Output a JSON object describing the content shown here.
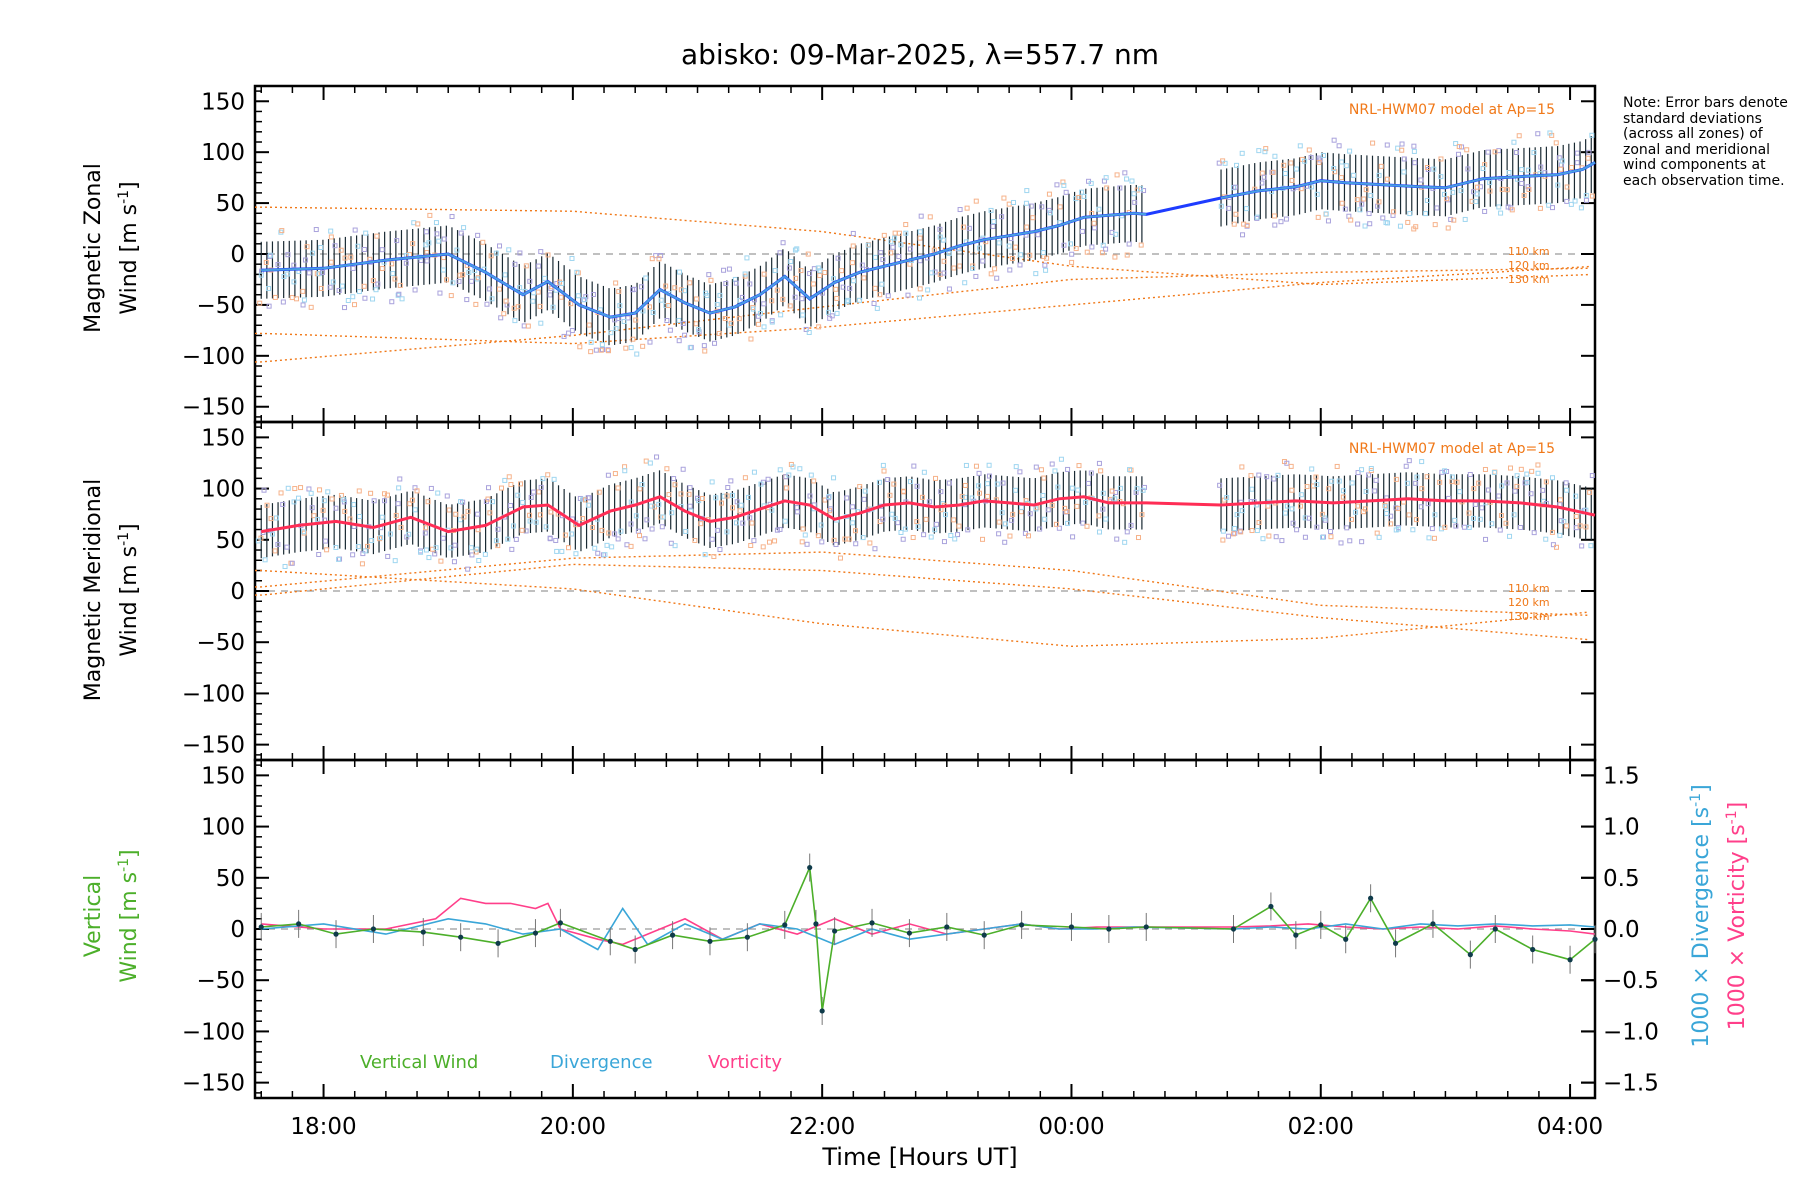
{
  "title": "abisko: 09-Mar-2025, λ=557.7 nm",
  "note": "Note: Error bars denote standard deviations (across all zones) of zonal and meridional wind components at each observation time.",
  "colors": {
    "zonal_mean": "#1e3cff",
    "zonal_light": "#4aa0e0",
    "meridional_mean": "#ff2d55",
    "vertical": "#4caf2a",
    "divergence": "#3aa6d8",
    "vorticity": "#ff3f8a",
    "model": "#f07818",
    "zone_points": "#a9a2dc",
    "error_bar": "#1a2a33"
  },
  "chart_data": [
    {
      "type": "line",
      "panel": "zonal",
      "ylabel": "Magnetic Zonal Wind [m s-1]",
      "ylabel_line1": "Magnetic Zonal",
      "ylabel_line2": "Wind [m s",
      "ylabel_sup": "-1",
      "ylabel_close": "]",
      "ylim": [
        -165,
        165
      ],
      "yticks": [
        -150,
        -100,
        -50,
        0,
        50,
        100,
        150
      ],
      "model_label": "NRL-HWM07 model at Ap=15",
      "altitude_labels": [
        "110 km",
        "120 km",
        "130 km"
      ],
      "series": [
        {
          "name": "zonal",
          "x": [
            17.5,
            18.0,
            18.5,
            19.0,
            19.3,
            19.6,
            19.8,
            20.05,
            20.3,
            20.5,
            20.7,
            20.9,
            21.1,
            21.3,
            21.5,
            21.7,
            21.9,
            22.1,
            22.3,
            22.5,
            22.7,
            22.9,
            23.1,
            23.3,
            23.5,
            23.7,
            23.9,
            24.1,
            24.3,
            24.5,
            24.6
          ],
          "values": [
            -16,
            -14,
            -6,
            0,
            -18,
            -40,
            -27,
            -50,
            -62,
            -58,
            -35,
            -48,
            -58,
            -52,
            -40,
            -22,
            -44,
            -28,
            -18,
            -12,
            -6,
            0,
            8,
            14,
            18,
            22,
            28,
            36,
            38,
            40,
            39
          ]
        },
        {
          "name": "zonal-late",
          "x": [
            25.2,
            25.5,
            25.8,
            26.0,
            26.2,
            26.5,
            26.8,
            27.0,
            27.3,
            27.6,
            27.9,
            28.1,
            28.2
          ],
          "values": [
            55,
            62,
            66,
            72,
            70,
            68,
            66,
            65,
            74,
            76,
            78,
            83,
            90
          ]
        }
      ],
      "model": [
        {
          "name": "110 km",
          "x": [
            17.5,
            20,
            22,
            24,
            26,
            28.2
          ],
          "values": [
            -78,
            -88,
            -72,
            -50,
            -28,
            -12
          ]
        },
        {
          "name": "120 km",
          "x": [
            17.5,
            20,
            22,
            24,
            26,
            28.2
          ],
          "values": [
            -106,
            -80,
            -52,
            -25,
            -18,
            -14
          ]
        },
        {
          "name": "130 km",
          "x": [
            17.5,
            20,
            22,
            24,
            26,
            28.2
          ],
          "values": [
            46,
            42,
            22,
            -12,
            -30,
            -20
          ]
        }
      ]
    },
    {
      "type": "line",
      "panel": "meridional",
      "ylabel": "Magnetic Meridional Wind [m s-1]",
      "ylabel_line1": "Magnetic Meridional",
      "ylabel_line2": "Wind [m s",
      "ylabel_sup": "-1",
      "ylabel_close": "]",
      "ylim": [
        -165,
        165
      ],
      "yticks": [
        -150,
        -100,
        -50,
        0,
        50,
        100,
        150
      ],
      "model_label": "NRL-HWM07 model at Ap=15",
      "altitude_labels": [
        "110 km",
        "120 km",
        "130 km"
      ],
      "series": [
        {
          "name": "meridional",
          "x": [
            17.5,
            17.8,
            18.1,
            18.4,
            18.7,
            19.0,
            19.3,
            19.6,
            19.8,
            20.05,
            20.3,
            20.5,
            20.7,
            20.9,
            21.1,
            21.3,
            21.5,
            21.7,
            21.9,
            22.1,
            22.3,
            22.5,
            22.7,
            22.9,
            23.1,
            23.3,
            23.5,
            23.7,
            23.9,
            24.1,
            24.3,
            24.6
          ],
          "values": [
            58,
            64,
            68,
            62,
            72,
            58,
            64,
            82,
            84,
            64,
            78,
            84,
            92,
            78,
            68,
            72,
            80,
            88,
            84,
            70,
            76,
            84,
            86,
            82,
            84,
            88,
            86,
            84,
            90,
            92,
            86,
            86
          ]
        },
        {
          "name": "meridional-late",
          "x": [
            25.2,
            25.5,
            25.8,
            26.1,
            26.4,
            26.7,
            27.0,
            27.3,
            27.6,
            27.9,
            28.2
          ],
          "values": [
            84,
            86,
            88,
            86,
            88,
            90,
            88,
            88,
            86,
            82,
            74
          ]
        }
      ],
      "model": [
        {
          "name": "110 km",
          "x": [
            17.5,
            20,
            22,
            24,
            26,
            28.2
          ],
          "values": [
            4,
            32,
            38,
            20,
            -14,
            -24
          ]
        },
        {
          "name": "120 km",
          "x": [
            17.5,
            20,
            22,
            24,
            26,
            28.2
          ],
          "values": [
            -4,
            26,
            20,
            2,
            -26,
            -48
          ]
        },
        {
          "name": "130 km",
          "x": [
            17.5,
            20,
            22,
            24,
            26,
            28.2
          ],
          "values": [
            20,
            2,
            -32,
            -54,
            -46,
            -20
          ]
        }
      ]
    },
    {
      "type": "line",
      "panel": "vertical",
      "ylabel": "Vertical Wind [m s-1]",
      "ylabel_line1": "Vertical",
      "ylabel_line2": "Wind [m s",
      "ylabel_sup": "-1",
      "ylabel_close": "]",
      "ylim": [
        -165,
        165
      ],
      "yticks": [
        -150,
        -100,
        -50,
        0,
        50,
        100,
        150
      ],
      "y2lim": [
        -1.65,
        1.65
      ],
      "y2ticks": [
        -1.5,
        -1.0,
        -0.5,
        0.0,
        0.5,
        1.0,
        1.5
      ],
      "y2ticklabels": [
        "−1.5",
        "−1.0",
        "−0.5",
        "0.0",
        "0.5",
        "1.0",
        "1.5"
      ],
      "y2label_div_text": "1000 × Divergence [s",
      "y2label_vor_text": "1000 × Vorticity [s",
      "y2label_sup": "-1",
      "y2label_close": "]",
      "xlabel": "Time [Hours UT]",
      "xlim": [
        17.45,
        28.2
      ],
      "xticks": [
        18,
        20,
        22,
        24,
        26,
        28
      ],
      "xticklabels": [
        "18:00",
        "20:00",
        "22:00",
        "00:00",
        "02:00",
        "04:00"
      ],
      "series": [
        {
          "name": "Vertical Wind",
          "x": [
            17.5,
            17.8,
            18.1,
            18.4,
            18.8,
            19.1,
            19.4,
            19.7,
            19.9,
            20.3,
            20.5,
            20.8,
            21.1,
            21.4,
            21.7,
            21.9,
            21.95,
            22.0,
            22.1,
            22.4,
            22.7,
            23.0,
            23.3,
            23.6,
            24.0,
            24.3,
            24.6,
            25.3,
            25.6,
            25.8,
            26.0,
            26.2,
            26.4,
            26.6,
            26.9,
            27.2,
            27.4,
            27.7,
            28.0,
            28.2
          ],
          "values": [
            2,
            5,
            -5,
            0,
            -3,
            -8,
            -14,
            -4,
            6,
            -12,
            -20,
            -6,
            -12,
            -8,
            4,
            60,
            5,
            -80,
            -2,
            6,
            -4,
            2,
            -6,
            4,
            2,
            0,
            2,
            0,
            22,
            -6,
            4,
            -10,
            30,
            -14,
            5,
            -25,
            0,
            -20,
            -30,
            -10
          ]
        },
        {
          "name": "Divergence",
          "x": [
            17.5,
            18.0,
            18.5,
            19.0,
            19.3,
            19.6,
            19.9,
            20.2,
            20.4,
            20.6,
            20.9,
            21.2,
            21.5,
            21.8,
            22.1,
            22.4,
            22.7,
            23.0,
            23.3,
            23.6,
            23.9,
            24.2,
            24.5,
            25.3,
            25.6,
            25.9,
            26.2,
            26.5,
            26.8,
            27.1,
            27.4,
            27.7,
            28.0,
            28.2
          ],
          "values": [
            0.0,
            0.05,
            -0.05,
            0.1,
            0.05,
            -0.05,
            0.0,
            -0.2,
            0.2,
            -0.15,
            0.05,
            -0.1,
            0.05,
            0.0,
            -0.15,
            0.0,
            -0.1,
            -0.05,
            0.0,
            0.05,
            0.0,
            0.0,
            0.02,
            0.0,
            0.02,
            0.0,
            0.05,
            0.0,
            0.05,
            0.03,
            0.05,
            0.03,
            0.04,
            0.02
          ]
        },
        {
          "name": "Vorticity",
          "x": [
            17.5,
            18.0,
            18.5,
            18.9,
            19.1,
            19.3,
            19.5,
            19.7,
            19.8,
            19.9,
            20.2,
            20.4,
            20.6,
            20.9,
            21.2,
            21.5,
            21.8,
            22.1,
            22.4,
            22.7,
            23.0,
            23.3,
            23.6,
            23.9,
            24.2,
            24.5,
            25.3,
            25.6,
            25.9,
            26.2,
            26.5,
            26.8,
            27.1,
            27.4,
            27.7,
            28.0,
            28.2
          ],
          "values": [
            0.05,
            0.0,
            0.0,
            0.1,
            0.3,
            0.25,
            0.25,
            0.2,
            0.25,
            0.0,
            -0.1,
            -0.15,
            -0.05,
            0.1,
            -0.1,
            0.05,
            -0.05,
            0.1,
            -0.05,
            0.05,
            -0.05,
            0.0,
            0.05,
            0.0,
            0.02,
            0.02,
            0.02,
            0.03,
            0.05,
            0.02,
            0.0,
            0.02,
            0.0,
            0.03,
            0.0,
            -0.02,
            -0.05
          ]
        }
      ],
      "legend": [
        "Vertical Wind",
        "Divergence",
        "Vorticity"
      ]
    }
  ]
}
